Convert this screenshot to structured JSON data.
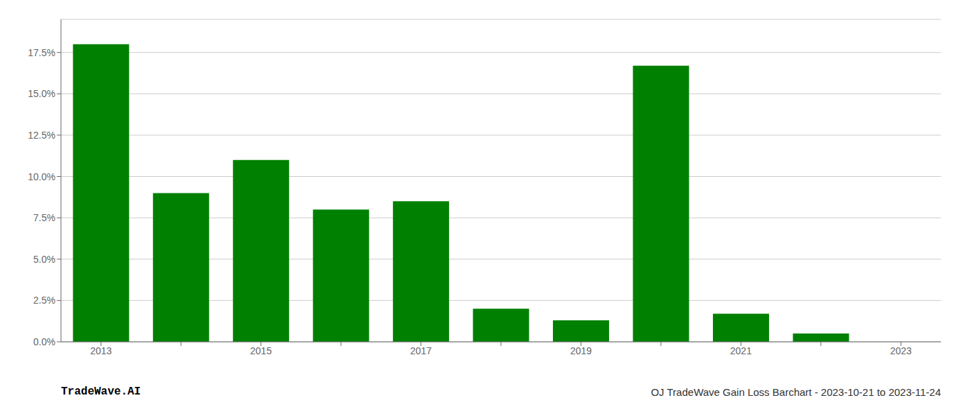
{
  "chart_data": {
    "type": "bar",
    "title": "OJ TradeWave Gain Loss Barchart - 2023-10-21 to 2023-11-24",
    "annotations": [
      "TradeWave.AI"
    ],
    "categories": [
      "2013",
      null,
      "2015",
      null,
      "2017",
      null,
      "2019",
      null,
      "2021",
      null,
      "2023"
    ],
    "values": [
      0.18,
      0.09,
      0.11,
      0.08,
      0.085,
      0.02,
      0.013,
      0.167,
      0.017,
      0.005,
      0.0
    ],
    "color": "#008000",
    "ylim": [
      0,
      0.195
    ],
    "yticks": [
      {
        "value": 0.0,
        "label": "0.0%"
      },
      {
        "value": 0.025,
        "label": "2.5%"
      },
      {
        "value": 0.05,
        "label": "5.0%"
      },
      {
        "value": 0.075,
        "label": "7.5%"
      },
      {
        "value": 0.1,
        "label": "10.0%"
      },
      {
        "value": 0.125,
        "label": "12.5%"
      },
      {
        "value": 0.15,
        "label": "15.0%"
      },
      {
        "value": 0.175,
        "label": "17.5%"
      }
    ],
    "grid": true
  }
}
